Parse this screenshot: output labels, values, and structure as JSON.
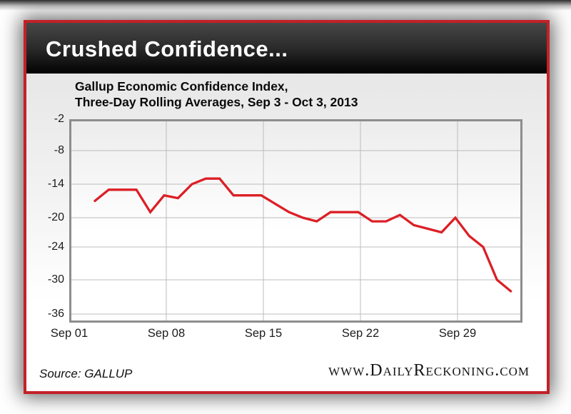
{
  "header": {
    "title": "Crushed Confidence..."
  },
  "chart": {
    "title_line1": "Gallup Economic Confidence Index,",
    "title_line2": "Three-Day Rolling Averages, Sep 3 - Oct 3, 2013"
  },
  "footer": {
    "source": "Source: GALLUP",
    "site": "www.DailyReckoning.com"
  },
  "colors": {
    "line": "#dc1f26",
    "card_border": "#c32127",
    "grid": "#bcbcbc",
    "plot_border": "#8d8d8d"
  },
  "chart_data": {
    "type": "line",
    "title": "Gallup Economic Confidence Index, Three-Day Rolling Averages, Sep 3 - Oct 3, 2013",
    "x": [
      "Sep 3",
      "Sep 4",
      "Sep 5",
      "Sep 6",
      "Sep 7",
      "Sep 8",
      "Sep 9",
      "Sep 10",
      "Sep 11",
      "Sep 12",
      "Sep 13",
      "Sep 14",
      "Sep 15",
      "Sep 16",
      "Sep 17",
      "Sep 18",
      "Sep 19",
      "Sep 20",
      "Sep 21",
      "Sep 22",
      "Sep 23",
      "Sep 24",
      "Sep 25",
      "Sep 26",
      "Sep 27",
      "Sep 28",
      "Sep 29",
      "Sep 30",
      "Oct 1",
      "Oct 2",
      "Oct 3"
    ],
    "values": [
      -17,
      -15,
      -15,
      -15,
      -19,
      -16,
      -16.5,
      -14,
      -13,
      -13,
      -16,
      -16,
      -16,
      -17.5,
      -19,
      -20,
      -20.5,
      -19,
      -19,
      -19,
      -20.5,
      -20.5,
      -19.5,
      -21,
      -21.5,
      -22,
      -20,
      -22.5,
      -24,
      -30,
      -32
    ],
    "y_ticks": [
      -2,
      -8,
      -14,
      -20,
      -24,
      -30,
      -36
    ],
    "x_ticks": [
      "Sep 01",
      "Sep 08",
      "Sep 15",
      "Sep 22",
      "Sep 29"
    ],
    "ylim": [
      -37.5,
      -2
    ],
    "grid": true,
    "legend_position": "none",
    "series_color": "#dc1f26",
    "source": "GALLUP"
  }
}
